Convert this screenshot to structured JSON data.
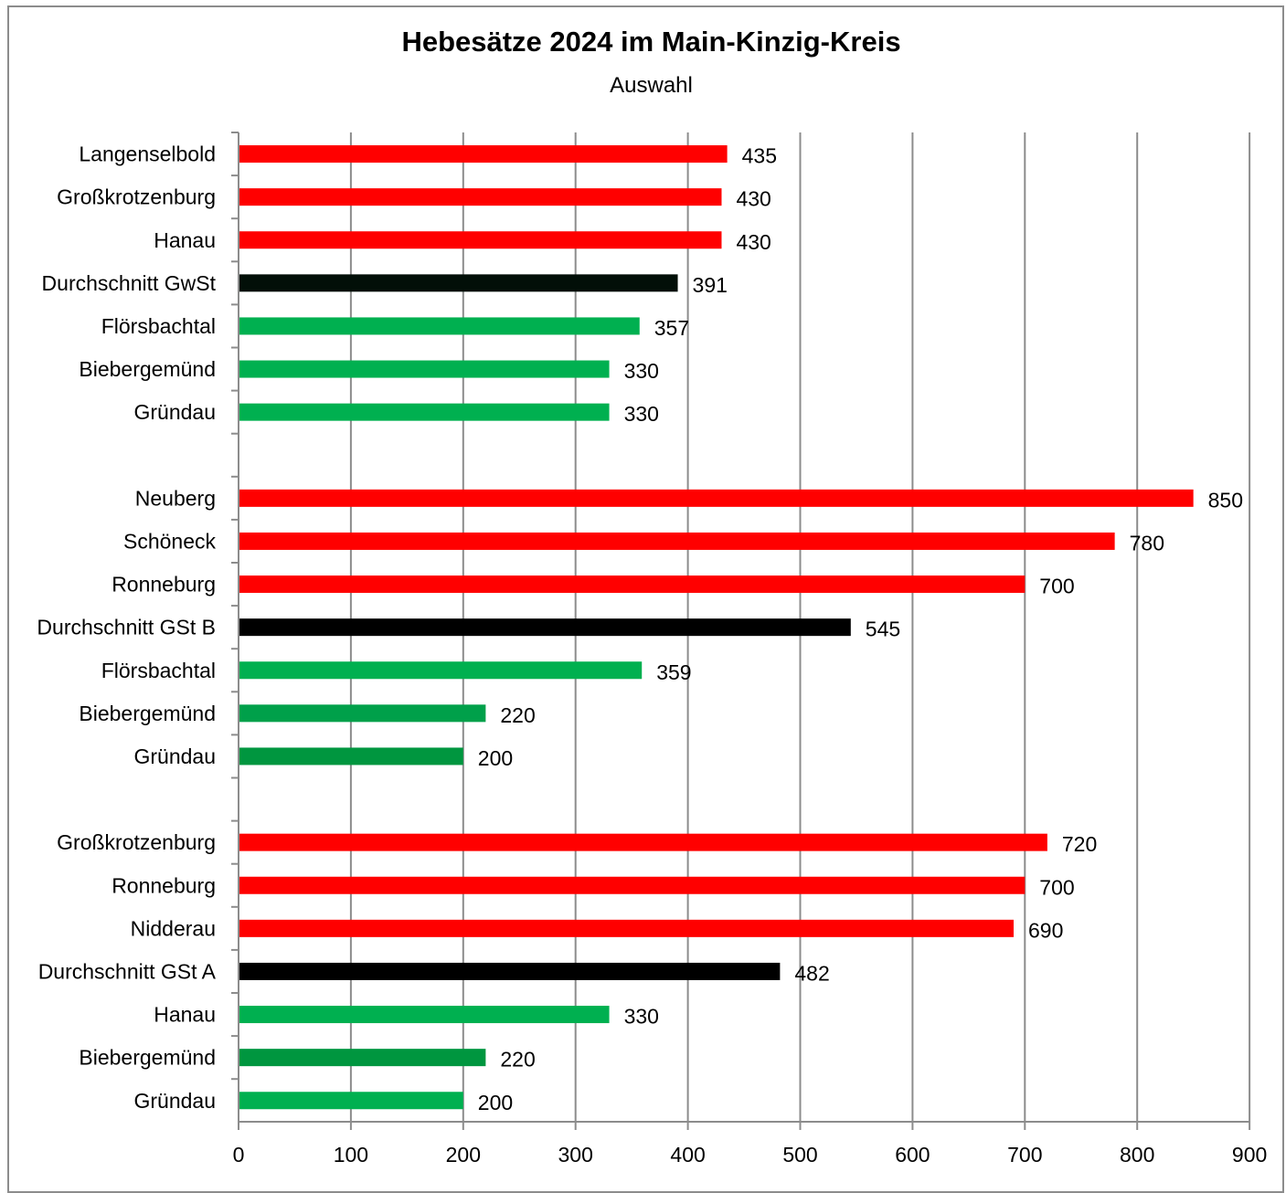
{
  "chart_data": {
    "type": "bar",
    "orientation": "horizontal",
    "title": "Hebesätze 2024 im Main-Kinzig-Kreis",
    "subtitle": "Auswahl",
    "xlim": [
      0,
      900
    ],
    "xticks": [
      "0",
      "100",
      "200",
      "300",
      "400",
      "500",
      "600",
      "700",
      "800",
      "900"
    ],
    "grid": true,
    "colors": {
      "high": "#ff0000",
      "average": "#000000",
      "low": "#00b050",
      "low_dark": "#00963f"
    },
    "groups": [
      {
        "bars": [
          {
            "category": "Langenselbold",
            "value": 435,
            "label": "435",
            "color": "#ff0000"
          },
          {
            "category": "Großkrotzenburg",
            "value": 430,
            "label": "430",
            "color": "#ff0000"
          },
          {
            "category": "Hanau",
            "value": 430,
            "label": "430",
            "color": "#ff0000"
          },
          {
            "category": "Durchschnitt GwSt",
            "value": 391,
            "label": "391",
            "color": "#020f08"
          },
          {
            "category": "Flörsbachtal",
            "value": 357,
            "label": "357",
            "color": "#00b050"
          },
          {
            "category": "Biebergemünd",
            "value": 330,
            "label": "330",
            "color": "#00b050"
          },
          {
            "category": "Gründau",
            "value": 330,
            "label": "330",
            "color": "#00b050"
          }
        ]
      },
      {
        "bars": [
          {
            "category": "Neuberg",
            "value": 850,
            "label": "850",
            "color": "#ff0000"
          },
          {
            "category": "Schöneck",
            "value": 780,
            "label": "780",
            "color": "#ff0000"
          },
          {
            "category": "Ronneburg",
            "value": 700,
            "label": "700",
            "color": "#ff0000"
          },
          {
            "category": "Durchschnitt GSt B",
            "value": 545,
            "label": "545",
            "color": "#000000"
          },
          {
            "category": "Flörsbachtal",
            "value": 359,
            "label": "359",
            "color": "#00b050"
          },
          {
            "category": "Biebergemünd",
            "value": 220,
            "label": "220",
            "color": "#00a04a"
          },
          {
            "category": "Gründau",
            "value": 200,
            "label": "200",
            "color": "#00963f"
          }
        ]
      },
      {
        "bars": [
          {
            "category": "Großkrotzenburg",
            "value": 720,
            "label": "720",
            "color": "#ff0000"
          },
          {
            "category": "Ronneburg",
            "value": 700,
            "label": "700",
            "color": "#ff0000"
          },
          {
            "category": "Nidderau",
            "value": 690,
            "label": "690",
            "color": "#ff0000"
          },
          {
            "category": "Durchschnitt GSt A",
            "value": 482,
            "label": "482",
            "color": "#000000"
          },
          {
            "category": "Hanau",
            "value": 330,
            "label": "330",
            "color": "#00b050"
          },
          {
            "category": "Biebergemünd",
            "value": 220,
            "label": "220",
            "color": "#00963f"
          },
          {
            "category": "Gründau",
            "value": 200,
            "label": "200",
            "color": "#00b050"
          }
        ]
      }
    ]
  }
}
